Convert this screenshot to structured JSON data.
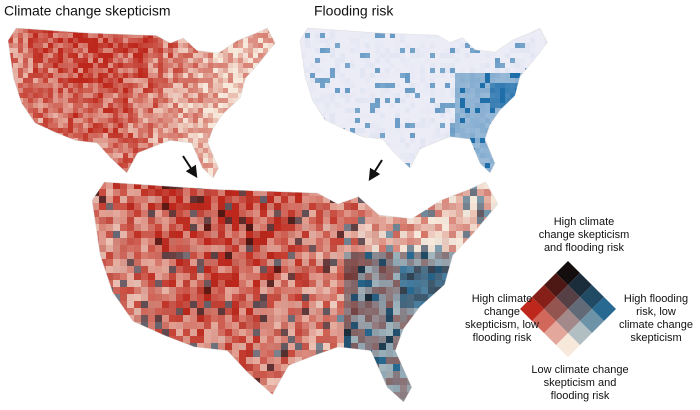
{
  "maps": {
    "left_title": "Climate change skepticism",
    "right_title": "Flooding risk"
  },
  "legend": {
    "top": [
      "High climate",
      "change skepticism",
      "and flooding risk"
    ],
    "left": [
      "High climate",
      "change",
      "skepticism, low",
      "flooding risk"
    ],
    "right": [
      "High flooding",
      "risk, low",
      "climate change",
      "skepticism"
    ],
    "bottom": [
      "Low climate change",
      "skepticism and",
      "flooding risk"
    ]
  }
}
